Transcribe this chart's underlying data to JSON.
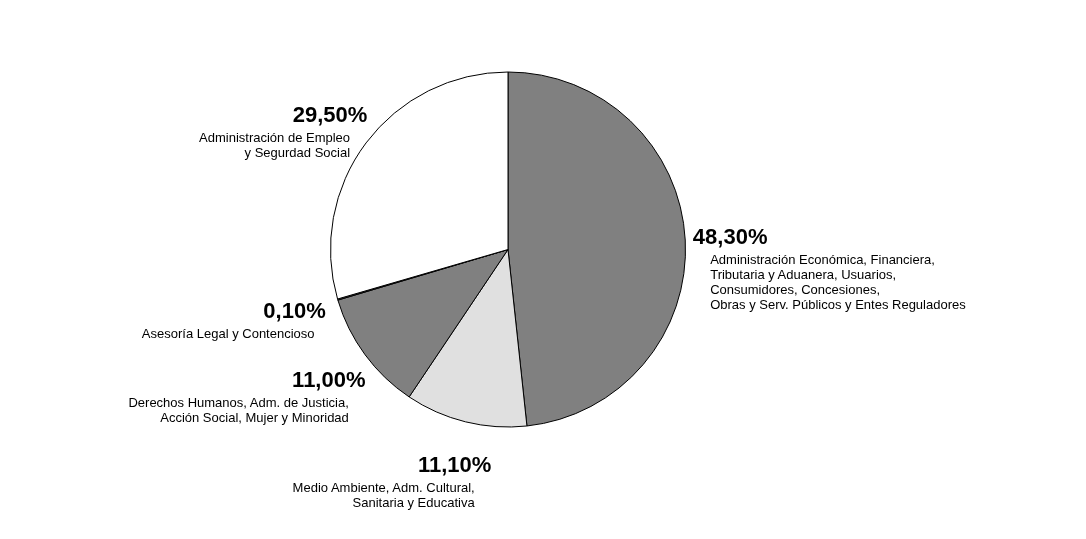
{
  "chart_data": {
    "type": "pie",
    "categories": [
      "Administración Económica, Financiera,\nTributaria y Aduanera, Usuarios,\nConsumidores, Concesiones,\nObras y Serv. Públicos y Entes Reguladores",
      "Medio Ambiente, Adm. Cultural,\nSanitaria y Educativa",
      "Derechos Humanos, Adm. de Justicia,\nAcción Social, Mujer y Minoridad",
      "Asesoría Legal y Contencioso",
      "Administración de Empleo\ny Segurdad Social"
    ],
    "values": [
      48.3,
      11.1,
      11.0,
      0.1,
      29.5
    ],
    "value_labels": [
      "48,30%",
      "11,10%",
      "11,00%",
      "0,10%",
      "29,50%"
    ],
    "colors": [
      "#808080",
      "#e0e0e0",
      "#808080",
      "#808080",
      "#ffffff"
    ],
    "legend": false
  }
}
